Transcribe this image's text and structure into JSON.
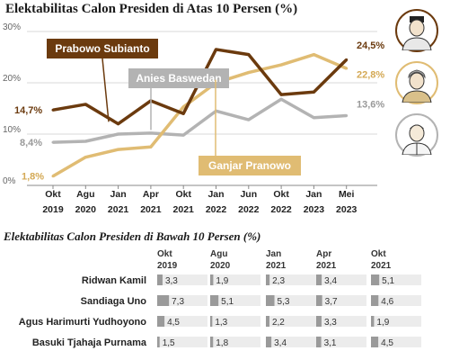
{
  "main_title": "Elektabilitas Calon Presiden di Atas 10 Persen (%)",
  "table_title": "Elektabilitas Calon Presiden di Bawah 10 Persen (%)",
  "chart_data": [
    {
      "type": "line",
      "title": "Elektabilitas Calon Presiden di Atas 10 Persen (%)",
      "ylim": [
        0,
        30
      ],
      "y_ticks": [
        "0%",
        "10%",
        "20%",
        "30%"
      ],
      "grid": true,
      "categories": [
        [
          "Okt",
          "2019"
        ],
        [
          "Agu",
          "2020"
        ],
        [
          "Jan",
          "2021"
        ],
        [
          "Apr",
          "2021"
        ],
        [
          "Okt",
          "2021"
        ],
        [
          "Jan",
          "2022"
        ],
        [
          "Jun",
          "2022"
        ],
        [
          "Okt",
          "2022"
        ],
        [
          "Jan",
          "2023"
        ],
        [
          "Mei",
          "2023"
        ]
      ],
      "series": [
        {
          "name": "Prabowo Subianto",
          "color": "#6b3a0e",
          "x": [
            0,
            1,
            2,
            3,
            4,
            5,
            6,
            7,
            8,
            9
          ],
          "values": [
            14.7,
            15.8,
            12.0,
            16.5,
            14.0,
            26.5,
            25.5,
            17.7,
            18.2,
            24.5
          ],
          "start_label": "14,7%",
          "end_label": "24,5%"
        },
        {
          "name": "Anies Baswedan",
          "color": "#b3b3b3",
          "x": [
            0,
            1,
            2,
            3,
            4,
            5,
            6,
            7,
            8,
            9
          ],
          "values": [
            8.4,
            8.6,
            10.0,
            10.2,
            9.8,
            14.5,
            12.8,
            16.8,
            13.2,
            13.6
          ],
          "start_label": "8,4%",
          "end_label": "13,6%"
        },
        {
          "name": "Ganjar Pranowo",
          "color": "#e0bc73",
          "x": [
            0,
            1,
            2,
            3,
            4,
            5,
            6,
            7,
            8,
            9
          ],
          "values": [
            1.8,
            5.5,
            7.0,
            7.5,
            15.3,
            20.0,
            22.0,
            23.5,
            25.5,
            22.8
          ],
          "start_label": "1,8%",
          "end_label": "22,8%"
        }
      ]
    },
    {
      "type": "table",
      "title": "Elektabilitas Calon Presiden di Bawah 10 Persen (%)",
      "columns": [
        [
          "Okt",
          "2019"
        ],
        [
          "Agu",
          "2020"
        ],
        [
          "Jan",
          "2021"
        ],
        [
          "Apr",
          "2021"
        ],
        [
          "Okt",
          "2021"
        ]
      ],
      "rows": [
        {
          "name": "Ridwan Kamil",
          "values": [
            3.3,
            1.9,
            2.3,
            3.4,
            5.1
          ],
          "labels": [
            "3,3",
            "1,9",
            "2,3",
            "3,4",
            "5,1"
          ]
        },
        {
          "name": "Sandiaga Uno",
          "values": [
            7.3,
            5.1,
            5.3,
            3.7,
            4.6
          ],
          "labels": [
            "7,3",
            "5,1",
            "5,3",
            "3,7",
            "4,6"
          ]
        },
        {
          "name": "Agus Harimurti Yudhoyono",
          "values": [
            4.5,
            1.3,
            2.2,
            3.3,
            1.9
          ],
          "labels": [
            "4,5",
            "1,3",
            "2,2",
            "3,3",
            "1,9"
          ]
        },
        {
          "name": "Basuki Tjahaja Purnama",
          "values": [
            1.5,
            1.8,
            3.4,
            3.1,
            4.5
          ],
          "labels": [
            "1,5",
            "1,8",
            "3,4",
            "3,1",
            "4,5"
          ]
        }
      ]
    }
  ]
}
